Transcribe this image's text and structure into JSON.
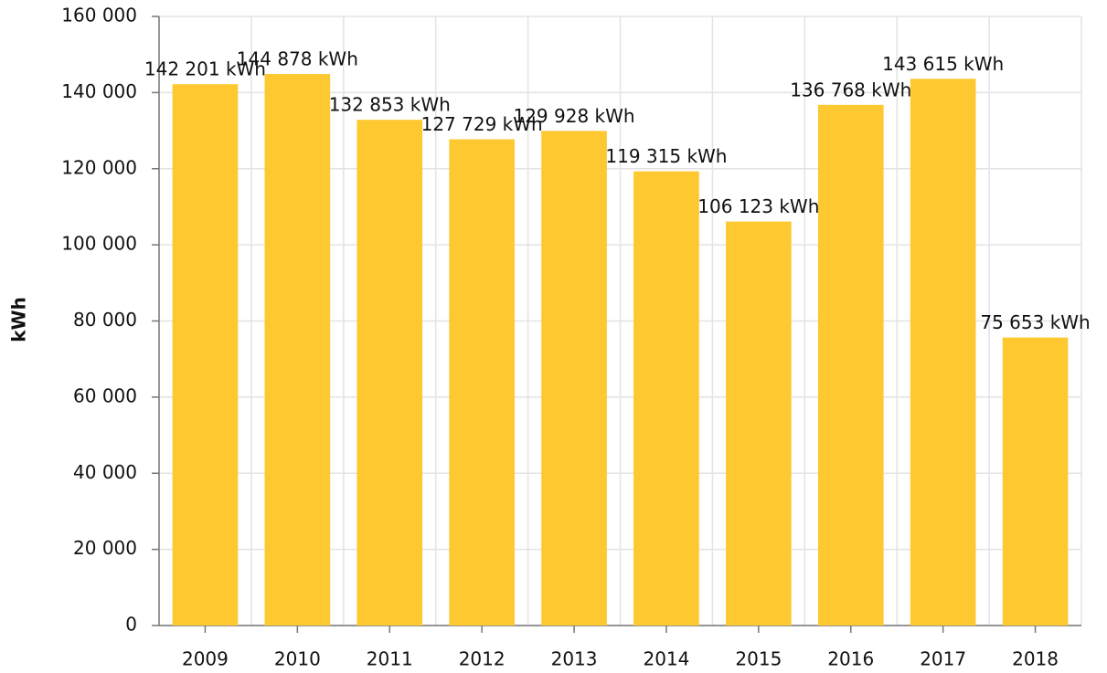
{
  "chart_data": {
    "type": "bar",
    "y_label": "kWh",
    "categories": [
      "2009",
      "2010",
      "2011",
      "2012",
      "2013",
      "2014",
      "2015",
      "2016",
      "2017",
      "2018"
    ],
    "values": [
      142201,
      144878,
      132853,
      127729,
      129928,
      119315,
      106123,
      136768,
      143615,
      75653
    ],
    "value_labels": [
      "142 201 kWh",
      "144 878 kWh",
      "132 853 kWh",
      "127 729 kWh",
      "129 928 kWh",
      "119 315 kWh",
      "106 123 kWh",
      "136 768 kWh",
      "143 615 kWh",
      "75 653 kWh"
    ],
    "color": "#fdc830",
    "ylim": [
      0,
      160000
    ],
    "yticks": [
      0,
      {
        "value": 20000,
        "label": "20 000"
      },
      {
        "value": 40000,
        "label": "40 000"
      },
      {
        "value": 60000,
        "label": "60 000"
      },
      {
        "value": 80000,
        "label": "80 000"
      },
      {
        "value": 100000,
        "label": "100 000"
      },
      {
        "value": 120000,
        "label": "120 000"
      },
      {
        "value": 140000,
        "label": "140 000"
      },
      {
        "value": 160000,
        "label": "160 000"
      }
    ],
    "grid": true
  }
}
